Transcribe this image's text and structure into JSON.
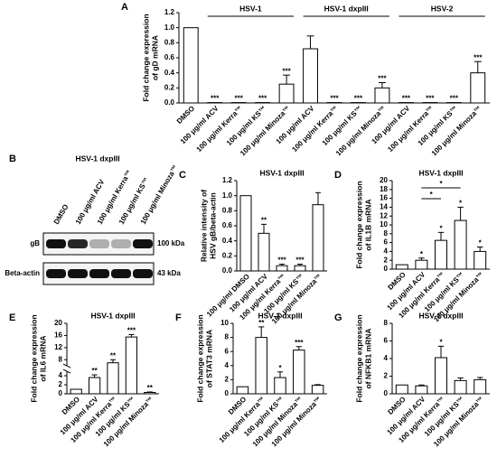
{
  "chart_data": [
    {
      "type": "bar",
      "panel": "A",
      "ylabel": [
        "Fold change expression",
        "of gD mRNA"
      ],
      "categories": [
        "DMSO",
        "100 μg/ml ACV",
        "100 μg/ml Kerra™",
        "100 μg/ml KS™",
        "100 μg/ml Minoza™",
        "100 μg/ml ACV",
        "100 μg/ml Kerra™",
        "100 μg/ml KS™",
        "100 μg/ml Minoza™",
        "100 μg/ml ACV",
        "100 μg/ml Kerra™",
        "100 μg/ml KS™",
        "100 μg/ml Minoza™"
      ],
      "values": [
        1.0,
        0.005,
        0.005,
        0.005,
        0.25,
        0.72,
        0.005,
        0.005,
        0.2,
        0.005,
        0.005,
        0.005,
        0.4
      ],
      "errors": [
        0,
        0,
        0,
        0,
        0.12,
        0.17,
        0,
        0,
        0.07,
        0,
        0,
        0,
        0.15
      ],
      "significance": [
        null,
        "***",
        "***",
        "***",
        "***",
        null,
        "***",
        "***",
        "***",
        "***",
        "***",
        "***",
        "***"
      ],
      "groups": [
        {
          "label": "HSV-1",
          "from": 1,
          "to": 4
        },
        {
          "label": "HSV-1 dxpIII",
          "from": 5,
          "to": 8
        },
        {
          "label": "HSV-2",
          "from": 9,
          "to": 12
        }
      ],
      "ylim": [
        0,
        1.2
      ],
      "yticks": [
        {
          "value": 0,
          "label": "0.0"
        },
        {
          "value": 0.2,
          "label": "0.2"
        },
        {
          "value": 0.4,
          "label": "0.4"
        },
        {
          "value": 0.6,
          "label": "0.6"
        },
        {
          "value": 0.8,
          "label": "0.8"
        },
        {
          "value": 1,
          "label": "1.0"
        },
        {
          "value": 1.2,
          "label": "1.2"
        }
      ]
    },
    {
      "type": "bar",
      "panel": "C",
      "title": "HSV-1 dxpIII",
      "ylabel": [
        "Relative intensity of",
        "HSV gB/beta-actin"
      ],
      "categories": [
        "100 μg/ml DMSO",
        "100 μg/ml ACV",
        "100 μg/ml Kerra™",
        "100 μg/ml KS™",
        "100 μg/ml Minoza™"
      ],
      "values": [
        1.0,
        0.5,
        0.07,
        0.07,
        0.88
      ],
      "errors": [
        0,
        0.12,
        0.02,
        0.02,
        0.16
      ],
      "significance": [
        null,
        "**",
        "***",
        "***",
        null
      ],
      "ylim": [
        0,
        1.2
      ],
      "yticks": [
        {
          "value": 0,
          "label": "0.0"
        },
        {
          "value": 0.2,
          "label": "0.2"
        },
        {
          "value": 0.4,
          "label": "0.4"
        },
        {
          "value": 0.6,
          "label": "0.6"
        },
        {
          "value": 0.8,
          "label": "0.8"
        },
        {
          "value": 1,
          "label": "1.0"
        },
        {
          "value": 1.2,
          "label": "1.2"
        }
      ]
    },
    {
      "type": "bar",
      "panel": "D",
      "title": "HSV-1 dxpIII",
      "ylabel": [
        "Fold change expression",
        "of IL1B mRNA"
      ],
      "categories": [
        "DMSO",
        "100 μg/ml ACV",
        "100 μg/ml Kerra™",
        "100 μg/ml KS™",
        "100 μg/ml Minoza™"
      ],
      "values": [
        1,
        2,
        6.5,
        11,
        4
      ],
      "errors": [
        0,
        0.5,
        1.8,
        3,
        1
      ],
      "significance": [
        null,
        "*",
        "*",
        "*",
        "*"
      ],
      "comparisons": [
        {
          "from": 1,
          "to": 2,
          "text": "*"
        },
        {
          "from": 1,
          "to": 3,
          "text": "*"
        }
      ],
      "ylim": [
        0,
        20
      ],
      "yticks": [
        0,
        2,
        4,
        6,
        8,
        10,
        12,
        14,
        16,
        18,
        20
      ]
    },
    {
      "type": "broken_bar",
      "panel": "E",
      "title": "HSV-1 dxpIII",
      "ylabel": [
        "Fold change expression",
        "of IL6 mRNA"
      ],
      "categories": [
        "DMSO",
        "100 μg/ml ACV",
        "100 μg/ml Kerra™",
        "100 μg/ml KS™",
        "100 μg/ml Minoza™"
      ],
      "values": [
        1,
        3.6,
        7,
        15.5,
        0.3
      ],
      "errors": [
        0,
        0.6,
        1,
        0.8,
        0.1
      ],
      "significance": [
        null,
        "**",
        "**",
        "***",
        "**"
      ],
      "ylim_lower": [
        0,
        5
      ],
      "ylim_upper": [
        6,
        20
      ],
      "yticks": [
        0,
        2,
        4,
        8,
        12,
        16,
        20
      ]
    },
    {
      "type": "bar",
      "panel": "F",
      "title": "HSV-1 dxpIII",
      "ylabel": [
        "Fold change expression",
        "of STAT3 mRNA"
      ],
      "categories": [
        "DMSO",
        "100 μg/ml Kerra™",
        "100 μg/ml KS™",
        "100 μg/ml Minoza™",
        "100 μg/ml Minoza™"
      ],
      "values": [
        1,
        8,
        2.3,
        6.2,
        1.2
      ],
      "errors": [
        0,
        1.5,
        0.8,
        0.5,
        0.1
      ],
      "significance": [
        null,
        "**",
        "*",
        "***",
        null
      ],
      "ylim": [
        0,
        10
      ],
      "yticks": [
        0,
        2,
        4,
        6,
        8,
        10
      ]
    },
    {
      "type": "bar",
      "panel": "G",
      "title": "HSV-1 dxpIII",
      "ylabel": [
        "Fold change expression",
        "of NFKB1 mRNA"
      ],
      "categories": [
        "DMSO",
        "100 μg/ml ACV",
        "100 μg/ml Kerra™",
        "100 μg/ml KS™",
        "100 μg/ml Minoza™"
      ],
      "values": [
        1,
        0.9,
        4.1,
        1.5,
        1.6
      ],
      "errors": [
        0,
        0.1,
        1.3,
        0.3,
        0.25
      ],
      "significance": [
        null,
        null,
        "*",
        null,
        null
      ],
      "ylim": [
        0,
        8
      ],
      "yticks": [
        0,
        2,
        4,
        6,
        8
      ]
    }
  ],
  "blot": {
    "panel": "B",
    "title": "HSV-1 dxpIII",
    "lanes": [
      "DMSO",
      "100 μg/ml ACV",
      "100 μg/ml Kerra™",
      "100 μg/ml KS™",
      "100 μg/ml Minoza™"
    ],
    "rows": [
      {
        "label": "gB",
        "size": "100 kDa"
      },
      {
        "label": "Beta-actin",
        "size": "43 kDa"
      }
    ]
  }
}
